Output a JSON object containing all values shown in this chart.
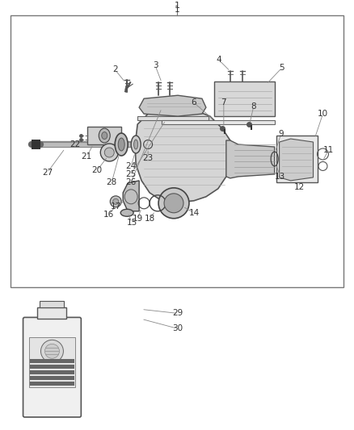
{
  "bg_color": "#ffffff",
  "line_color": "#555555",
  "text_color": "#333333",
  "light_gray": "#d8d8d8",
  "mid_gray": "#b0b0b0",
  "dark_gray": "#888888"
}
